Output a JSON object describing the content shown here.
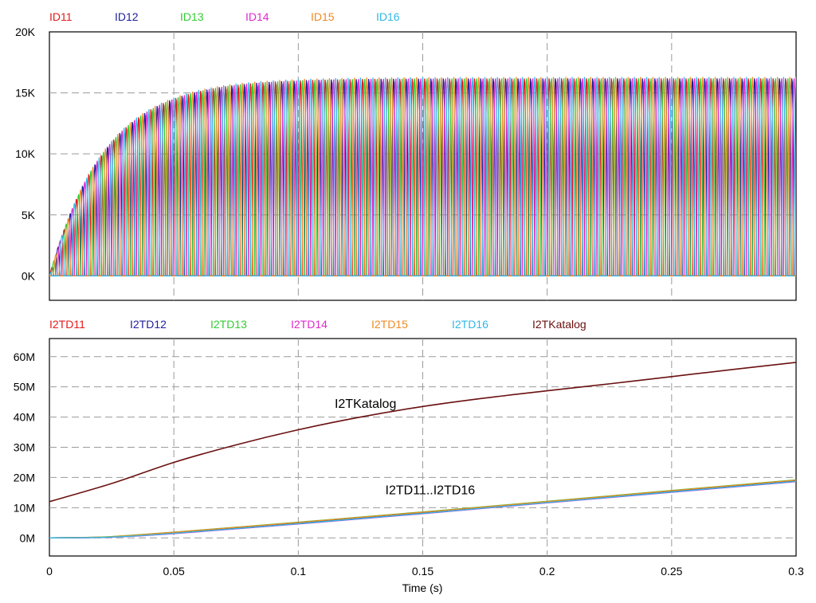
{
  "chart_data": [
    {
      "type": "line",
      "title": "",
      "xlabel": "",
      "ylabel": "",
      "xlim": [
        0,
        0.3
      ],
      "ylim": [
        -2000,
        20000
      ],
      "grid": true,
      "legend_placement": "top-left, above plot",
      "y_ticks": [
        {
          "value": 0,
          "label": "0K"
        },
        {
          "value": 5000,
          "label": "5K"
        },
        {
          "value": 10000,
          "label": "10K"
        },
        {
          "value": 15000,
          "label": "15K"
        },
        {
          "value": 20000,
          "label": "20K"
        }
      ],
      "x_grid": [
        0.05,
        0.1,
        0.15,
        0.2,
        0.25
      ],
      "series": [
        {
          "name": "ID11",
          "color": "#e41a1c",
          "phase": 0
        },
        {
          "name": "ID12",
          "color": "#1f1f9c",
          "phase": 3
        },
        {
          "name": "ID13",
          "color": "#33cc33",
          "phase": 1
        },
        {
          "name": "ID14",
          "color": "#e029d0",
          "phase": 4
        },
        {
          "name": "ID15",
          "color": "#f08a24",
          "phase": 2
        },
        {
          "name": "ID16",
          "color": "#30b8e6",
          "phase": 5
        }
      ],
      "waveform": {
        "period_s": 0.005,
        "pulses_per_period": 6,
        "steady_state_peak": 16300,
        "rise_time_constant_s": 0.022
      }
    },
    {
      "type": "line",
      "title": "",
      "xlabel": "Time (s)",
      "ylabel": "",
      "xlim": [
        0,
        0.3
      ],
      "ylim": [
        -6000000,
        66000000
      ],
      "grid": true,
      "legend_placement": "top-left, above plot",
      "y_ticks": [
        {
          "value": 0,
          "label": "0M"
        },
        {
          "value": 10000000,
          "label": "10M"
        },
        {
          "value": 20000000,
          "label": "20M"
        },
        {
          "value": 30000000,
          "label": "30M"
        },
        {
          "value": 40000000,
          "label": "40M"
        },
        {
          "value": 50000000,
          "label": "50M"
        },
        {
          "value": 60000000,
          "label": "60M"
        }
      ],
      "x_ticks": [
        {
          "value": 0,
          "label": "0"
        },
        {
          "value": 0.05,
          "label": "0.05"
        },
        {
          "value": 0.1,
          "label": "0.1"
        },
        {
          "value": 0.15,
          "label": "0.15"
        },
        {
          "value": 0.2,
          "label": "0.2"
        },
        {
          "value": 0.25,
          "label": "0.25"
        },
        {
          "value": 0.3,
          "label": "0.3"
        }
      ],
      "annotations": [
        {
          "text": "I2TKatalog",
          "x": 0.127,
          "y": 43000000
        },
        {
          "text": "I2TD11..I2TD16",
          "x": 0.153,
          "y": 14500000
        }
      ],
      "series": [
        {
          "name": "I2TD11",
          "color": "#e41a1c",
          "x": [
            0,
            0.02,
            0.03,
            0.05,
            0.1,
            0.15,
            0.2,
            0.25,
            0.3
          ],
          "y": [
            0,
            200000,
            600000,
            1800000,
            5000000,
            8400000,
            12000000,
            15500000,
            19000000
          ]
        },
        {
          "name": "I2TD12",
          "color": "#1f1f9c",
          "x": [
            0,
            0.02,
            0.03,
            0.05,
            0.1,
            0.15,
            0.2,
            0.25,
            0.3
          ],
          "y": [
            0,
            150000,
            500000,
            1600000,
            4800000,
            8200000,
            11800000,
            15300000,
            18800000
          ]
        },
        {
          "name": "I2TD13",
          "color": "#33cc33",
          "x": [
            0,
            0.02,
            0.03,
            0.05,
            0.1,
            0.15,
            0.2,
            0.25,
            0.3
          ],
          "y": [
            0,
            250000,
            700000,
            1900000,
            5200000,
            8600000,
            12100000,
            15700000,
            19200000
          ]
        },
        {
          "name": "I2TD14",
          "color": "#e029d0",
          "x": [
            0,
            0.02,
            0.03,
            0.05,
            0.1,
            0.15,
            0.2,
            0.25,
            0.3
          ],
          "y": [
            0,
            100000,
            400000,
            1400000,
            4600000,
            8000000,
            11600000,
            15100000,
            18600000
          ]
        },
        {
          "name": "I2TD15",
          "color": "#f08a24",
          "x": [
            0,
            0.02,
            0.03,
            0.05,
            0.1,
            0.15,
            0.2,
            0.25,
            0.3
          ],
          "y": [
            0,
            200000,
            650000,
            1850000,
            5100000,
            8500000,
            12000000,
            15600000,
            19100000
          ]
        },
        {
          "name": "I2TD16",
          "color": "#30b8e6",
          "x": [
            0,
            0.02,
            0.03,
            0.05,
            0.1,
            0.15,
            0.2,
            0.25,
            0.3
          ],
          "y": [
            0,
            120000,
            450000,
            1500000,
            4700000,
            8100000,
            11700000,
            15200000,
            18700000
          ]
        },
        {
          "name": "I2TKatalog",
          "color": "#6b1010",
          "x": [
            0,
            0.025,
            0.05,
            0.075,
            0.1,
            0.125,
            0.15,
            0.175,
            0.2,
            0.225,
            0.25,
            0.275,
            0.3
          ],
          "y": [
            12000000,
            18000000,
            25000000,
            30800000,
            35800000,
            40000000,
            43500000,
            46300000,
            48700000,
            51000000,
            53400000,
            55800000,
            58100000
          ]
        }
      ]
    }
  ]
}
